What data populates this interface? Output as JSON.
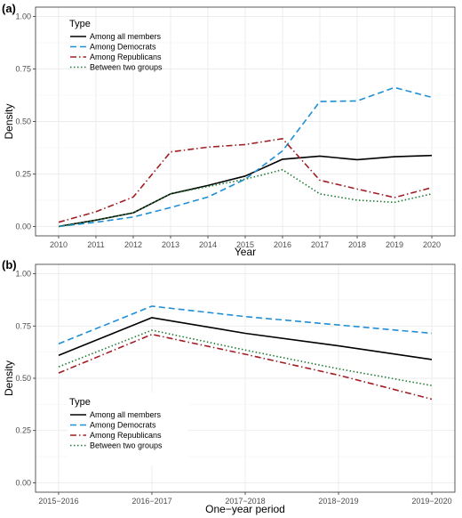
{
  "colors": {
    "all": "#000000",
    "dem": "#1f8fd6",
    "rep": "#a01e24",
    "between": "#1e7a34"
  },
  "chart_data": [
    {
      "type": "line",
      "panel_label": "(a)",
      "xlabel": "Year",
      "ylabel": "Density",
      "x": [
        "2010",
        "2011",
        "2012",
        "2013",
        "2014",
        "2015",
        "2016",
        "2017",
        "2018",
        "2019",
        "2020"
      ],
      "ylim": [
        0,
        1
      ],
      "yticks": [
        "0.00",
        "0.25",
        "0.50",
        "0.75",
        "1.00"
      ],
      "grid": true,
      "legend_position": "top-left",
      "legend_title": "Type",
      "series": [
        {
          "key": "all",
          "name": "Among all members",
          "dash": "solid",
          "values": [
            0.0,
            0.03,
            0.065,
            0.155,
            0.195,
            0.24,
            0.32,
            0.335,
            0.318,
            0.332,
            0.338
          ]
        },
        {
          "key": "dem",
          "name": "Among Democrats",
          "dash": "dashed",
          "values": [
            0.0,
            0.02,
            0.045,
            0.09,
            0.14,
            0.225,
            0.36,
            0.595,
            0.598,
            0.662,
            0.615
          ]
        },
        {
          "key": "rep",
          "name": "Among Republicans",
          "dash": "dotdash",
          "values": [
            0.02,
            0.07,
            0.14,
            0.355,
            0.378,
            0.39,
            0.418,
            0.22,
            0.178,
            0.138,
            0.185
          ]
        },
        {
          "key": "between",
          "name": "Between two groups",
          "dash": "dotted",
          "values": [
            0.0,
            0.03,
            0.065,
            0.155,
            0.19,
            0.225,
            0.27,
            0.155,
            0.125,
            0.115,
            0.155
          ]
        }
      ]
    },
    {
      "type": "line",
      "panel_label": "(b)",
      "xlabel": "One−year period",
      "ylabel": "Density",
      "x": [
        "2015−2016",
        "2016−2017",
        "2017−2018",
        "2018−2019",
        "2019−2020"
      ],
      "ylim": [
        0,
        1
      ],
      "yticks": [
        "0.00",
        "0.25",
        "0.50",
        "0.75",
        "1.00"
      ],
      "grid": true,
      "legend_position": "bottom-left",
      "legend_title": "Type",
      "series": [
        {
          "key": "all",
          "name": "Among all members",
          "dash": "solid",
          "values": [
            0.61,
            0.79,
            0.715,
            0.655,
            0.59
          ]
        },
        {
          "key": "dem",
          "name": "Among Democrats",
          "dash": "dashed",
          "values": [
            0.665,
            0.845,
            0.795,
            0.755,
            0.715
          ]
        },
        {
          "key": "rep",
          "name": "Among Republicans",
          "dash": "dotdash",
          "values": [
            0.525,
            0.71,
            0.615,
            0.515,
            0.4
          ]
        },
        {
          "key": "between",
          "name": "Between two groups",
          "dash": "dotted",
          "values": [
            0.555,
            0.73,
            0.635,
            0.545,
            0.465
          ]
        }
      ]
    }
  ]
}
